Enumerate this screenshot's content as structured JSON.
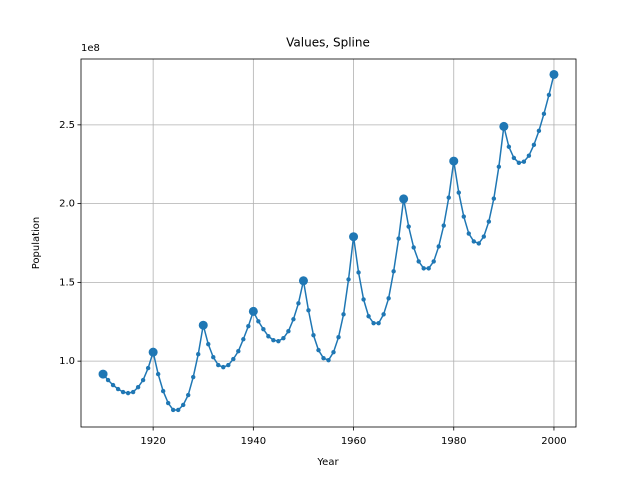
{
  "chart_data": {
    "type": "line",
    "title": "Values, Spline",
    "x_label": "Year",
    "y_label": "Population",
    "y_offset_label": "1e8",
    "color": "#1f77b4",
    "grid": true,
    "xlim": [
      1905.6,
      2004.4
    ],
    "ylim": [
      58200000,
      291800000
    ],
    "xticks": [
      1920,
      1940,
      1960,
      1980,
      2000
    ],
    "yticks": [
      {
        "value": 100000000,
        "label": "1.0"
      },
      {
        "value": 150000000,
        "label": "1.5"
      },
      {
        "value": 200000000,
        "label": "2.0"
      },
      {
        "value": 250000000,
        "label": "2.5"
      }
    ],
    "series": [
      {
        "x": [
          1910,
          1911,
          1912,
          1913,
          1914,
          1915,
          1916,
          1917,
          1918,
          1919,
          1920,
          1921,
          1922,
          1923,
          1924,
          1925,
          1926,
          1927,
          1928,
          1929,
          1930,
          1931,
          1932,
          1933,
          1934,
          1935,
          1936,
          1937,
          1938,
          1939,
          1940,
          1941,
          1942,
          1943,
          1944,
          1945,
          1946,
          1947,
          1948,
          1949,
          1950,
          1951,
          1952,
          1953,
          1954,
          1955,
          1956,
          1957,
          1958,
          1959,
          1960,
          1961,
          1962,
          1963,
          1964,
          1965,
          1966,
          1967,
          1968,
          1969,
          1970,
          1971,
          1972,
          1973,
          1974,
          1975,
          1976,
          1977,
          1978,
          1979,
          1980,
          1981,
          1982,
          1983,
          1984,
          1985,
          1986,
          1987,
          1988,
          1989,
          1990,
          1991,
          1992,
          1993,
          1994,
          1995,
          1996,
          1997,
          1998,
          1999,
          2000
        ],
        "values": [
          91800000,
          88000000,
          84800000,
          82300000,
          80400000,
          79700000,
          80400000,
          83500000,
          88000000,
          95600000,
          105700000,
          91800000,
          81000000,
          73400000,
          69000000,
          69000000,
          72200000,
          78500000,
          89900000,
          104400000,
          122800000,
          110800000,
          102500000,
          97500000,
          96200000,
          97500000,
          101300000,
          106300000,
          113900000,
          122200000,
          131600000,
          125300000,
          120300000,
          115800000,
          113300000,
          112700000,
          114600000,
          119000000,
          126600000,
          136700000,
          151000000,
          132300000,
          116500000,
          107000000,
          101900000,
          100600000,
          105700000,
          115200000,
          129700000,
          151900000,
          179000000,
          156300000,
          139200000,
          128500000,
          124100000,
          124100000,
          129700000,
          139900000,
          157000000,
          177800000,
          203000000,
          185400000,
          172200000,
          163300000,
          158900000,
          158900000,
          163300000,
          172800000,
          186100000,
          203800000,
          227000000,
          207000000,
          191800000,
          181000000,
          176000000,
          174700000,
          179100000,
          188600000,
          203200000,
          223400000,
          249000000,
          236100000,
          229000000,
          225900000,
          226600000,
          230400000,
          237300000,
          246200000,
          257000000,
          269000000,
          282000000
        ]
      },
      {
        "x": [
          1910,
          1920,
          1930,
          1940,
          1950,
          1960,
          1970,
          1980,
          1990,
          2000
        ],
        "values": [
          91800000,
          105700000,
          122800000,
          131600000,
          151000000,
          179000000,
          203000000,
          227000000,
          249000000,
          282000000
        ]
      }
    ]
  }
}
